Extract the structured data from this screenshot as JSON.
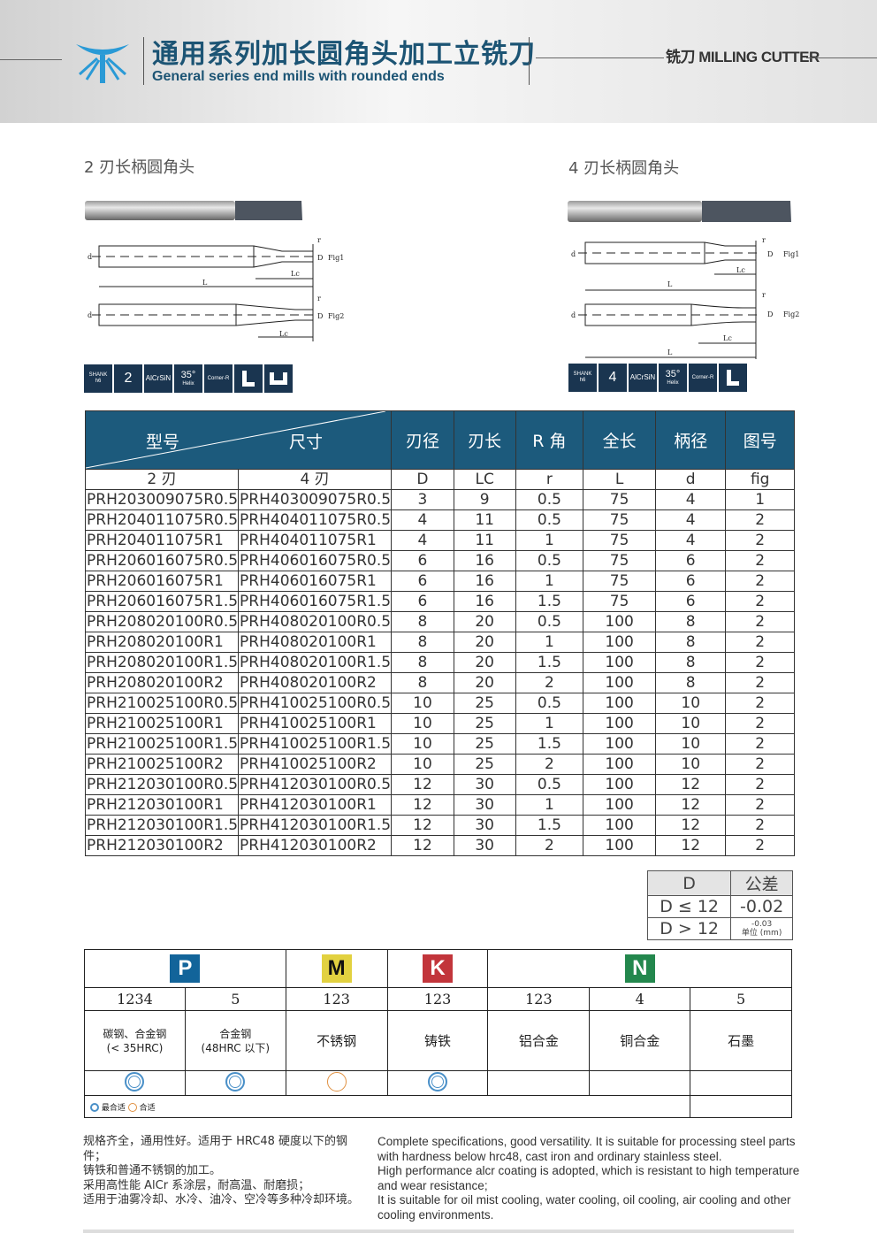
{
  "header": {
    "title_cn": "通用系列加长圆角头加工立铣刀",
    "title_en": "General series end mills with rounded ends",
    "category": "铣刀 MILLING CUTTER",
    "brand_color": "#1c5474"
  },
  "sections": [
    {
      "title": "2 刃长柄圆角头",
      "labels": {
        "d": "d",
        "D": "D",
        "L": "L",
        "Lc": "Lc",
        "r": "r",
        "fig1": "Fig1",
        "fig2": "Fig2"
      },
      "icons": [
        {
          "name": "shank-h6",
          "text": "SHANK",
          "sub": "h6"
        },
        {
          "name": "flutes",
          "text": "2"
        },
        {
          "name": "coating",
          "text": "AlCrSiN"
        },
        {
          "name": "helix",
          "text": "35°",
          "sub": "Helix"
        },
        {
          "name": "corner-r",
          "text": "Corner-R"
        },
        {
          "name": "l-shape",
          "text": ""
        },
        {
          "name": "u-shape",
          "text": ""
        }
      ]
    },
    {
      "title": "4 刃长柄圆角头",
      "labels": {
        "d": "d",
        "D": "D",
        "L": "L",
        "Lc": "Lc",
        "r": "r",
        "fig1": "Fig1",
        "fig2": "Fig2"
      },
      "icons": [
        {
          "name": "shank-h6",
          "text": "SHANK",
          "sub": "h6"
        },
        {
          "name": "flutes",
          "text": "4"
        },
        {
          "name": "coating",
          "text": "AlCrSiN"
        },
        {
          "name": "helix",
          "text": "35°",
          "sub": "Helix"
        },
        {
          "name": "corner-r",
          "text": "Corner-R"
        },
        {
          "name": "l-shape",
          "text": ""
        }
      ]
    }
  ],
  "spec_table": {
    "header": {
      "model": "型号",
      "size": "尺寸",
      "cols": [
        "刃径",
        "刃长",
        "R 角",
        "全长",
        "柄径",
        "图号"
      ]
    },
    "subheader": [
      "2 刃",
      "4 刃",
      "D",
      "LC",
      "r",
      "L",
      "d",
      "fig"
    ],
    "rows": [
      [
        "PRH203009075R0.5",
        "PRH403009075R0.5",
        "3",
        "9",
        "0.5",
        "75",
        "4",
        "1"
      ],
      [
        "PRH204011075R0.5",
        "PRH404011075R0.5",
        "4",
        "11",
        "0.5",
        "75",
        "4",
        "2"
      ],
      [
        "PRH204011075R1",
        "PRH404011075R1",
        "4",
        "11",
        "1",
        "75",
        "4",
        "2"
      ],
      [
        "PRH206016075R0.5",
        "PRH406016075R0.5",
        "6",
        "16",
        "0.5",
        "75",
        "6",
        "2"
      ],
      [
        "PRH206016075R1",
        "PRH406016075R1",
        "6",
        "16",
        "1",
        "75",
        "6",
        "2"
      ],
      [
        "PRH206016075R1.5",
        "PRH406016075R1.5",
        "6",
        "16",
        "1.5",
        "75",
        "6",
        "2"
      ],
      [
        "PRH208020100R0.5",
        "PRH408020100R0.5",
        "8",
        "20",
        "0.5",
        "100",
        "8",
        "2"
      ],
      [
        "PRH208020100R1",
        "PRH408020100R1",
        "8",
        "20",
        "1",
        "100",
        "8",
        "2"
      ],
      [
        "PRH208020100R1.5",
        "PRH408020100R1.5",
        "8",
        "20",
        "1.5",
        "100",
        "8",
        "2"
      ],
      [
        "PRH208020100R2",
        "PRH408020100R2",
        "8",
        "20",
        "2",
        "100",
        "8",
        "2"
      ],
      [
        "PRH210025100R0.5",
        "PRH410025100R0.5",
        "10",
        "25",
        "0.5",
        "100",
        "10",
        "2"
      ],
      [
        "PRH210025100R1",
        "PRH410025100R1",
        "10",
        "25",
        "1",
        "100",
        "10",
        "2"
      ],
      [
        "PRH210025100R1.5",
        "PRH410025100R1.5",
        "10",
        "25",
        "1.5",
        "100",
        "10",
        "2"
      ],
      [
        "PRH210025100R2",
        "PRH410025100R2",
        "10",
        "25",
        "2",
        "100",
        "10",
        "2"
      ],
      [
        "PRH212030100R0.5",
        "PRH412030100R0.5",
        "12",
        "30",
        "0.5",
        "100",
        "12",
        "2"
      ],
      [
        "PRH212030100R1",
        "PRH412030100R1",
        "12",
        "30",
        "1",
        "100",
        "12",
        "2"
      ],
      [
        "PRH212030100R1.5",
        "PRH412030100R1.5",
        "12",
        "30",
        "1.5",
        "100",
        "12",
        "2"
      ],
      [
        "PRH212030100R2",
        "PRH412030100R2",
        "12",
        "30",
        "2",
        "100",
        "12",
        "2"
      ]
    ]
  },
  "tolerance": {
    "head": [
      "D",
      "公差"
    ],
    "rows": [
      [
        "D ≤ 12",
        "-0.02"
      ],
      [
        "D > 12",
        "-0.03"
      ]
    ],
    "unit": "单位 (mm)"
  },
  "materials": {
    "groups": [
      {
        "label": "P",
        "color": "#12649a",
        "text": "#fff"
      },
      {
        "label": "M",
        "color": "#e2d140",
        "text": "#111"
      },
      {
        "label": "K",
        "color": "#c2353b",
        "text": "#fff"
      },
      {
        "label": "N",
        "color": "#23874d",
        "text": "#fff"
      }
    ],
    "numbers": [
      "1234",
      "5",
      "123",
      "123",
      "123",
      "4",
      "5"
    ],
    "names": [
      "碳钢、合金钢\n(< 35HRC)",
      "合金钢\n(48HRC 以下)",
      "不锈钢",
      "铸铁",
      "铝合金",
      "铜合金",
      "石墨"
    ],
    "suitability": [
      "best",
      "best",
      "suitable",
      "best",
      "",
      "",
      ""
    ],
    "legend": {
      "best": "最合适",
      "suitable": "合适"
    },
    "colors": {
      "best": "#4a90c8",
      "suitable": "#e09040"
    }
  },
  "description": {
    "cn": [
      "规格齐全，通用性好。适用于 HRC48 硬度以下的钢件；",
      "铸铁和普通不锈钢的加工。",
      "采用高性能 AlCr 系涂层，耐高温、耐磨损；",
      "适用于油雾冷却、水冷、油冷、空冷等多种冷却环境。"
    ],
    "en": [
      "Complete specifications, good versatility. It is suitable for processing steel parts",
      "with hardness below hrc48, cast iron and ordinary stainless steel.",
      "High performance alcr coating is adopted, which is resistant to high temperature",
      "and wear resistance;",
      "It is suitable for oil mist cooling, water cooling, oil cooling, air cooling and other",
      "cooling environments."
    ]
  }
}
